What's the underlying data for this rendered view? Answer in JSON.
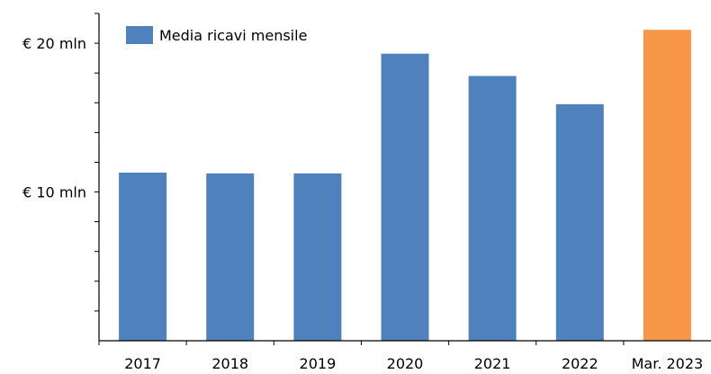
{
  "chart_data": {
    "type": "bar",
    "categories": [
      "2017",
      "2018",
      "2019",
      "2020",
      "2021",
      "2022",
      "Mar. 2023"
    ],
    "series": [
      {
        "name": "Media ricavi mensile",
        "values": [
          11.3,
          11.25,
          11.25,
          19.3,
          17.8,
          15.9,
          20.9
        ]
      }
    ],
    "bar_colors": [
      "#4f81bd",
      "#4f81bd",
      "#4f81bd",
      "#4f81bd",
      "#4f81bd",
      "#4f81bd",
      "#f79646"
    ],
    "legend_color": "#4f81bd",
    "y_tick_labels": [
      {
        "value": 10,
        "label": "€ 10 mln"
      },
      {
        "value": 20,
        "label": "€ 20 mln"
      }
    ],
    "y_minor_tick_step": 2,
    "ylim": [
      0,
      22
    ],
    "legend_position": "top-left",
    "grid": false,
    "title": "",
    "xlabel": "",
    "ylabel": ""
  }
}
